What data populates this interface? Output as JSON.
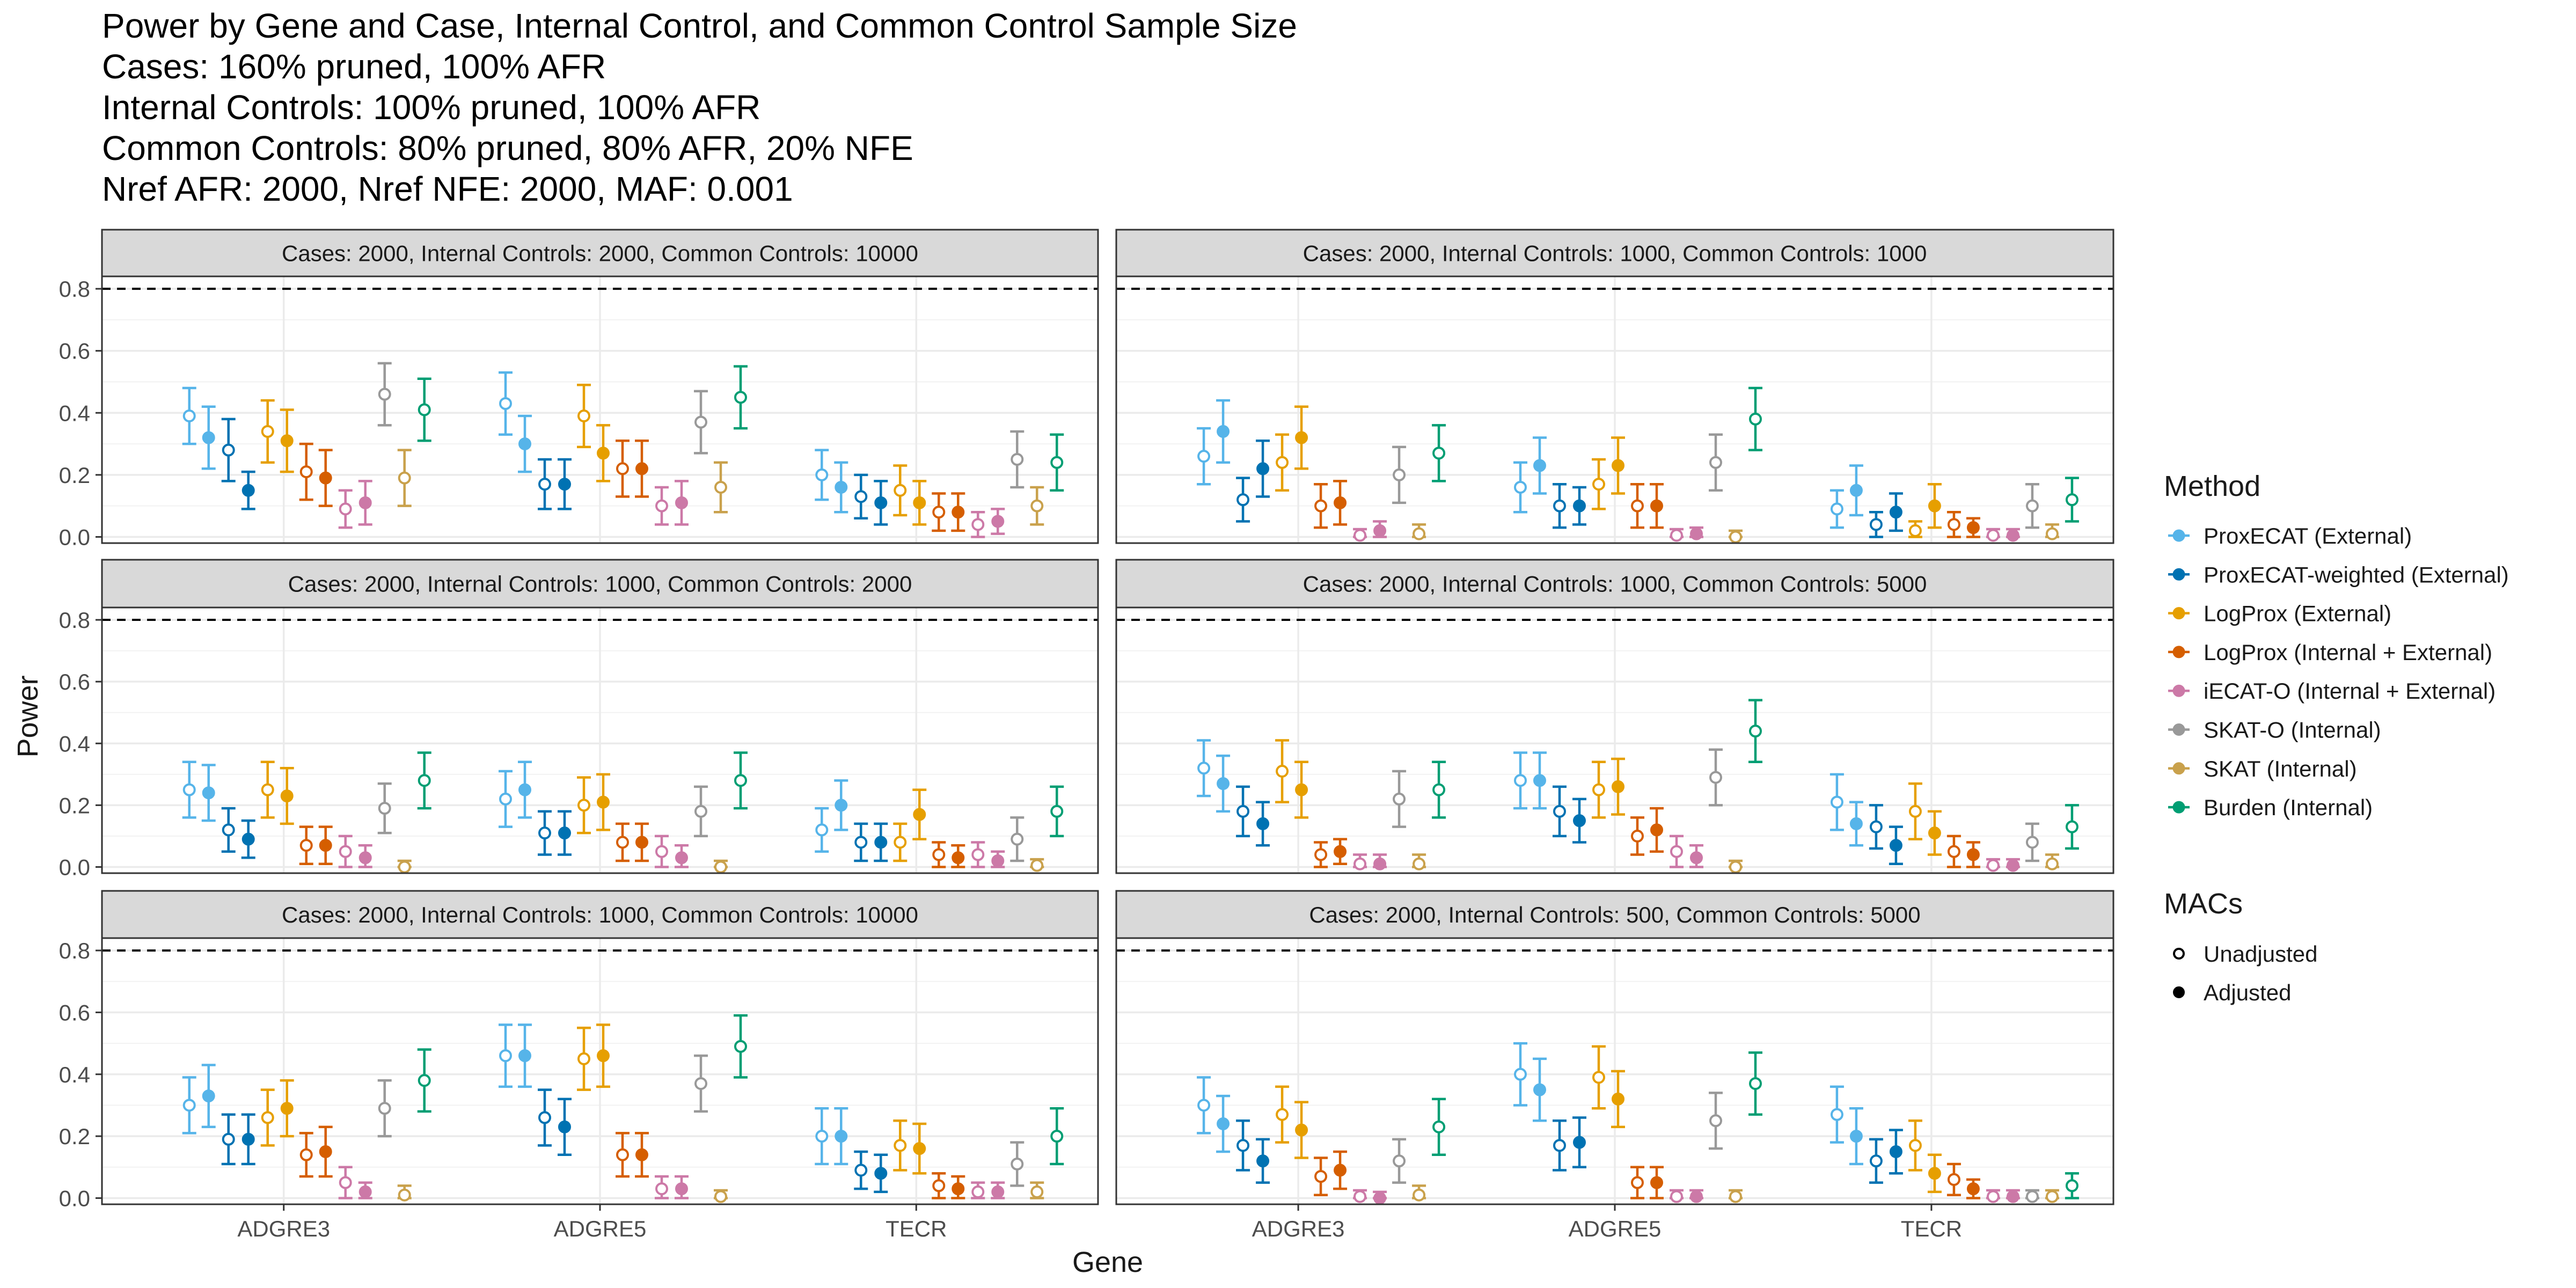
{
  "chart_data": {
    "type": "scatter",
    "title_lines": [
      "Power by Gene and Case, Internal Control, and Common Control Sample Size",
      "Cases: 160% pruned, 100% AFR",
      "Internal Controls: 100% pruned, 100% AFR",
      "Common Controls: 80% pruned, 80% AFR, 20% NFE",
      "Nref AFR: 2000, Nref NFE: 2000, MAF: 0.001"
    ],
    "xlabel": "Gene",
    "ylabel": "Power",
    "categories": [
      "ADGRE3",
      "ADGRE5",
      "TECR"
    ],
    "ylim": [
      -0.02,
      0.84
    ],
    "yticks": [
      0.0,
      0.2,
      0.4,
      0.6,
      0.8
    ],
    "ytick_labels": [
      "0.0",
      "0.2",
      "0.4",
      "0.6",
      "0.8"
    ],
    "reference_line": 0.8,
    "grid": true,
    "legend_placement": "right",
    "legend_method_title": "Method",
    "legend_macs_title": "MACs",
    "methods": [
      {
        "name": "ProxECAT (External)",
        "color": "#56B4E9"
      },
      {
        "name": "ProxECAT-weighted (External)",
        "color": "#0072B2"
      },
      {
        "name": "LogProx (External)",
        "color": "#E69F00"
      },
      {
        "name": "LogProx (Internal + External)",
        "color": "#D55E00"
      },
      {
        "name": "iECAT-O (Internal + External)",
        "color": "#CC79A7"
      },
      {
        "name": "SKAT-O (Internal)",
        "color": "#999999"
      },
      {
        "name": "SKAT (Internal)",
        "color": "#C9A14C"
      },
      {
        "name": "Burden (Internal)",
        "color": "#009E73"
      }
    ],
    "macs": [
      "Unadjusted",
      "Adjusted"
    ],
    "point_order_note": "",
    "panels": [
      {
        "label": "Cases: 2000, Internal Controls: 2000, Common Controls: 10000",
        "values": {
          "ADGRE3": [
            [
              0.39,
              0.09,
              0.32,
              0.1,
              0.28,
              0.1,
              0.15,
              0.06
            ],
            [
              0.34,
              0.1,
              0.31,
              0.1,
              0.21,
              0.09,
              0.19,
              0.09
            ],
            [
              0.09,
              0.06,
              0.11,
              0.07,
              0.46,
              0.1
            ],
            [
              0.19,
              0.09
            ],
            [
              0.41,
              0.1
            ]
          ],
          "ADGRE5": [
            [
              0.43,
              0.1,
              0.3,
              0.09,
              0.17,
              0.08,
              0.17,
              0.08
            ],
            [
              0.39,
              0.1,
              0.27,
              0.09,
              0.22,
              0.09,
              0.22,
              0.09
            ],
            [
              0.1,
              0.06,
              0.11,
              0.07,
              0.37,
              0.1
            ],
            [
              0.16,
              0.08
            ],
            [
              0.45,
              0.1
            ]
          ],
          "TECR": [
            [
              0.2,
              0.08,
              0.16,
              0.08,
              0.13,
              0.07,
              0.11,
              0.07
            ],
            [
              0.15,
              0.08,
              0.11,
              0.07,
              0.08,
              0.06,
              0.08,
              0.06
            ],
            [
              0.04,
              0.04,
              0.05,
              0.04,
              0.25,
              0.09
            ],
            [
              0.1,
              0.06
            ],
            [
              0.24,
              0.09
            ]
          ]
        }
      },
      {
        "label": "Cases: 2000, Internal Controls: 1000, Common Controls: 1000",
        "values": {
          "ADGRE3": [
            [
              0.26,
              0.09,
              0.34,
              0.1,
              0.12,
              0.07,
              0.22,
              0.09
            ],
            [
              0.24,
              0.09,
              0.32,
              0.1,
              0.1,
              0.07,
              0.11,
              0.07
            ],
            [
              0.005,
              0.02,
              0.02,
              0.03,
              0.2,
              0.09
            ],
            [
              0.01,
              0.03
            ],
            [
              0.27,
              0.09
            ]
          ],
          "ADGRE5": [
            [
              0.16,
              0.08,
              0.23,
              0.09,
              0.1,
              0.07,
              0.1,
              0.06
            ],
            [
              0.17,
              0.08,
              0.23,
              0.09,
              0.1,
              0.07,
              0.1,
              0.07
            ],
            [
              0.005,
              0.02,
              0.01,
              0.02,
              0.24,
              0.09
            ],
            [
              0.0,
              0.02
            ],
            [
              0.38,
              0.1
            ]
          ],
          "TECR": [
            [
              0.09,
              0.06,
              0.15,
              0.08,
              0.04,
              0.04,
              0.08,
              0.06
            ],
            [
              0.02,
              0.03,
              0.1,
              0.07,
              0.04,
              0.04,
              0.03,
              0.03
            ],
            [
              0.005,
              0.02,
              0.005,
              0.02,
              0.1,
              0.07
            ],
            [
              0.01,
              0.03
            ],
            [
              0.12,
              0.07
            ]
          ]
        }
      },
      {
        "label": "Cases: 2000, Internal Controls: 1000, Common Controls: 2000",
        "values": {
          "ADGRE3": [
            [
              0.25,
              0.09,
              0.24,
              0.09,
              0.12,
              0.07,
              0.09,
              0.06
            ],
            [
              0.25,
              0.09,
              0.23,
              0.09,
              0.07,
              0.06,
              0.07,
              0.06
            ],
            [
              0.05,
              0.05,
              0.03,
              0.04,
              0.19,
              0.08
            ],
            [
              0.0,
              0.02
            ],
            [
              0.28,
              0.09
            ]
          ],
          "ADGRE5": [
            [
              0.22,
              0.09,
              0.25,
              0.09,
              0.11,
              0.07,
              0.11,
              0.07
            ],
            [
              0.2,
              0.09,
              0.21,
              0.09,
              0.08,
              0.06,
              0.08,
              0.06
            ],
            [
              0.05,
              0.05,
              0.03,
              0.04,
              0.18,
              0.08
            ],
            [
              0.0,
              0.02
            ],
            [
              0.28,
              0.09
            ]
          ],
          "TECR": [
            [
              0.12,
              0.07,
              0.2,
              0.08,
              0.08,
              0.06,
              0.08,
              0.06
            ],
            [
              0.08,
              0.06,
              0.17,
              0.08,
              0.04,
              0.04,
              0.03,
              0.04
            ],
            [
              0.04,
              0.04,
              0.02,
              0.03,
              0.09,
              0.07
            ],
            [
              0.005,
              0.02
            ],
            [
              0.18,
              0.08
            ]
          ]
        }
      },
      {
        "label": "Cases: 2000, Internal Controls: 1000, Common Controls: 5000",
        "values": {
          "ADGRE3": [
            [
              0.32,
              0.09,
              0.27,
              0.09,
              0.18,
              0.08,
              0.14,
              0.07
            ],
            [
              0.31,
              0.1,
              0.25,
              0.09,
              0.04,
              0.04,
              0.05,
              0.04
            ],
            [
              0.01,
              0.03,
              0.01,
              0.03,
              0.22,
              0.09
            ],
            [
              0.01,
              0.03
            ],
            [
              0.25,
              0.09
            ]
          ],
          "ADGRE5": [
            [
              0.28,
              0.09,
              0.28,
              0.09,
              0.18,
              0.08,
              0.15,
              0.07
            ],
            [
              0.25,
              0.09,
              0.26,
              0.09,
              0.1,
              0.06,
              0.12,
              0.07
            ],
            [
              0.05,
              0.05,
              0.03,
              0.04,
              0.29,
              0.09
            ],
            [
              0.0,
              0.02
            ],
            [
              0.44,
              0.1
            ]
          ],
          "TECR": [
            [
              0.21,
              0.09,
              0.14,
              0.07,
              0.13,
              0.07,
              0.07,
              0.06
            ],
            [
              0.18,
              0.09,
              0.11,
              0.07,
              0.05,
              0.05,
              0.04,
              0.04
            ],
            [
              0.005,
              0.02,
              0.005,
              0.02,
              0.08,
              0.06
            ],
            [
              0.01,
              0.03
            ],
            [
              0.13,
              0.07
            ]
          ]
        }
      },
      {
        "label": "Cases: 2000, Internal Controls: 1000, Common Controls: 10000",
        "values": {
          "ADGRE3": [
            [
              0.3,
              0.09,
              0.33,
              0.1,
              0.19,
              0.08,
              0.19,
              0.08
            ],
            [
              0.26,
              0.09,
              0.29,
              0.09,
              0.14,
              0.07,
              0.15,
              0.08
            ],
            [
              0.05,
              0.05,
              0.02,
              0.03,
              0.29,
              0.09
            ],
            [
              0.01,
              0.03
            ],
            [
              0.38,
              0.1
            ]
          ],
          "ADGRE5": [
            [
              0.46,
              0.1,
              0.46,
              0.1,
              0.26,
              0.09,
              0.23,
              0.09
            ],
            [
              0.45,
              0.1,
              0.46,
              0.1,
              0.14,
              0.07,
              0.14,
              0.07
            ],
            [
              0.03,
              0.04,
              0.03,
              0.04,
              0.37,
              0.09
            ],
            [
              0.005,
              0.02
            ],
            [
              0.49,
              0.1
            ]
          ],
          "TECR": [
            [
              0.2,
              0.09,
              0.2,
              0.09,
              0.09,
              0.06,
              0.08,
              0.06
            ],
            [
              0.17,
              0.08,
              0.16,
              0.08,
              0.04,
              0.04,
              0.03,
              0.04
            ],
            [
              0.02,
              0.03,
              0.02,
              0.03,
              0.11,
              0.07
            ],
            [
              0.02,
              0.03
            ],
            [
              0.2,
              0.09
            ]
          ]
        }
      },
      {
        "label": "Cases: 2000, Internal Controls: 500, Common Controls: 5000",
        "values": {
          "ADGRE3": [
            [
              0.3,
              0.09,
              0.24,
              0.09,
              0.17,
              0.08,
              0.12,
              0.07
            ],
            [
              0.27,
              0.09,
              0.22,
              0.09,
              0.07,
              0.06,
              0.09,
              0.06
            ],
            [
              0.005,
              0.02,
              0.0,
              0.02,
              0.12,
              0.07
            ],
            [
              0.01,
              0.03
            ],
            [
              0.23,
              0.09
            ]
          ],
          "ADGRE5": [
            [
              0.4,
              0.1,
              0.35,
              0.1,
              0.17,
              0.08,
              0.18,
              0.08
            ],
            [
              0.39,
              0.1,
              0.32,
              0.09,
              0.05,
              0.05,
              0.05,
              0.05
            ],
            [
              0.005,
              0.02,
              0.005,
              0.02,
              0.25,
              0.09
            ],
            [
              0.005,
              0.02
            ],
            [
              0.37,
              0.1
            ]
          ],
          "TECR": [
            [
              0.27,
              0.09,
              0.2,
              0.09,
              0.12,
              0.07,
              0.15,
              0.07
            ],
            [
              0.17,
              0.08,
              0.08,
              0.06,
              0.06,
              0.05,
              0.03,
              0.03
            ],
            [
              0.005,
              0.02,
              0.005,
              0.02,
              0.005,
              0.02
            ],
            [
              0.005,
              0.02
            ],
            [
              0.04,
              0.04
            ]
          ]
        }
      }
    ]
  }
}
